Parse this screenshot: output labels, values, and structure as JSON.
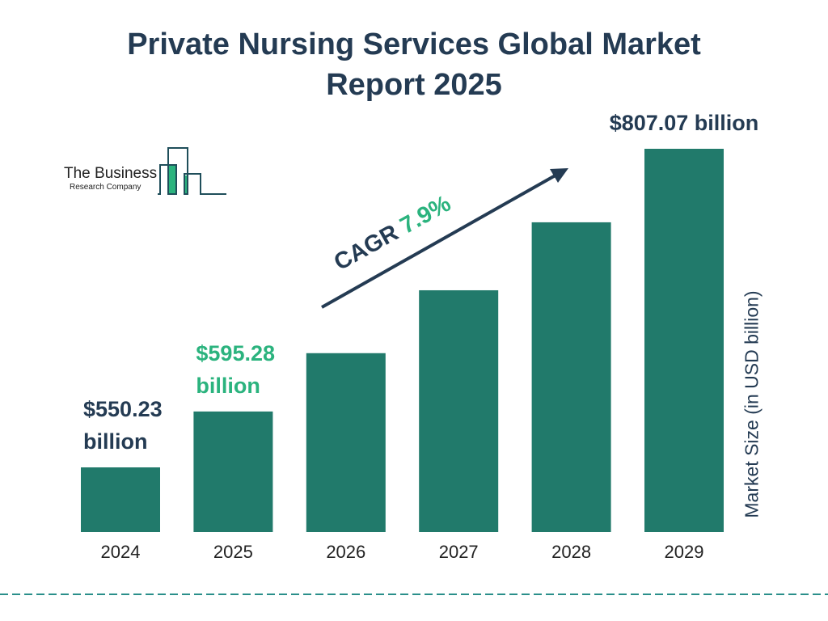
{
  "chart_data": {
    "type": "bar",
    "title_lines": [
      "Private Nursing Services Global Market",
      "Report 2025"
    ],
    "categories": [
      "2024",
      "2025",
      "2026",
      "2027",
      "2028",
      "2029"
    ],
    "values": [
      550.23,
      595.28,
      642.3,
      693.0,
      747.8,
      807.07
    ],
    "data_labels": [
      {
        "index": 0,
        "line1": "$550.23",
        "line2": "billion",
        "color": "#243b53"
      },
      {
        "index": 1,
        "line1": "$595.28",
        "line2": "billion",
        "color": "#2bb37e"
      },
      {
        "index": 5,
        "line1": "$807.07 billion",
        "line2": "",
        "color": "#243b53"
      }
    ],
    "ylabel": "Market Size (in USD billion)",
    "xlabel": "",
    "grid": false,
    "annotation": {
      "prefix": "CAGR ",
      "value": "7.9%"
    },
    "colors": {
      "bar": "#217a6b",
      "text": "#243b53",
      "accent": "#2bb37e",
      "dash": "#2a8f8a"
    }
  },
  "logo": {
    "line1": "The Business",
    "line2": "Research Company"
  }
}
